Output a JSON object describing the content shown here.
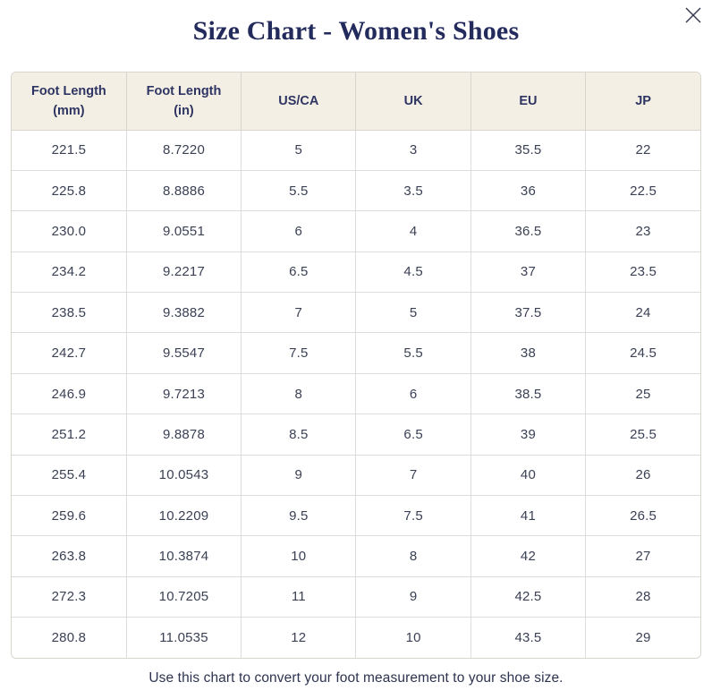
{
  "modal": {
    "title": "Size Chart - Women's Shoes",
    "footer_note": "Use this chart to convert your foot measurement to your shoe size.",
    "close_label": "Close"
  },
  "colors": {
    "title_navy": "#232a5c",
    "header_bg": "#f4efe4",
    "header_text": "#2e3563",
    "cell_text": "#3b4154",
    "border": "#d8d5cf",
    "close_icon": "#343a4f"
  },
  "table": {
    "headers": [
      {
        "lines": [
          "Foot Length",
          "(mm)"
        ]
      },
      {
        "lines": [
          "Foot Length",
          "(in)"
        ]
      },
      {
        "lines": [
          "US/CA"
        ]
      },
      {
        "lines": [
          "UK"
        ]
      },
      {
        "lines": [
          "EU"
        ]
      },
      {
        "lines": [
          "JP"
        ]
      }
    ],
    "rows": [
      [
        "221.5",
        "8.7220",
        "5",
        "3",
        "35.5",
        "22"
      ],
      [
        "225.8",
        "8.8886",
        "5.5",
        "3.5",
        "36",
        "22.5"
      ],
      [
        "230.0",
        "9.0551",
        "6",
        "4",
        "36.5",
        "23"
      ],
      [
        "234.2",
        "9.2217",
        "6.5",
        "4.5",
        "37",
        "23.5"
      ],
      [
        "238.5",
        "9.3882",
        "7",
        "5",
        "37.5",
        "24"
      ],
      [
        "242.7",
        "9.5547",
        "7.5",
        "5.5",
        "38",
        "24.5"
      ],
      [
        "246.9",
        "9.7213",
        "8",
        "6",
        "38.5",
        "25"
      ],
      [
        "251.2",
        "9.8878",
        "8.5",
        "6.5",
        "39",
        "25.5"
      ],
      [
        "255.4",
        "10.0543",
        "9",
        "7",
        "40",
        "26"
      ],
      [
        "259.6",
        "10.2209",
        "9.5",
        "7.5",
        "41",
        "26.5"
      ],
      [
        "263.8",
        "10.3874",
        "10",
        "8",
        "42",
        "27"
      ],
      [
        "272.3",
        "10.7205",
        "11",
        "9",
        "42.5",
        "28"
      ],
      [
        "280.8",
        "11.0535",
        "12",
        "10",
        "43.5",
        "29"
      ]
    ]
  }
}
